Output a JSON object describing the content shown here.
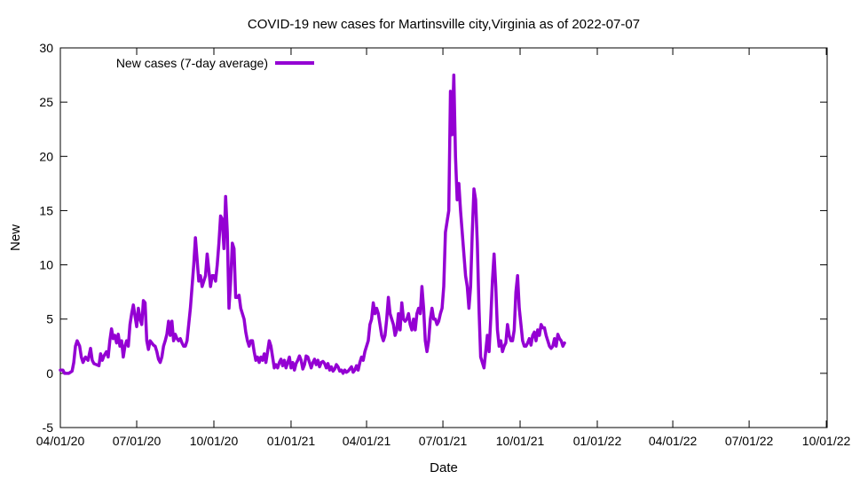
{
  "chart_data": {
    "type": "line",
    "title": "COVID-19 new cases for Martinsville city,Virginia as of 2022-07-07",
    "xlabel": "Date",
    "ylabel": "New",
    "ylim": [
      -5,
      30
    ],
    "yticks": [
      -5,
      0,
      5,
      10,
      15,
      20,
      25,
      30
    ],
    "x_range_days": [
      0,
      914
    ],
    "xticks": [
      {
        "label": "04/01/20",
        "day": 0
      },
      {
        "label": "07/01/20",
        "day": 91
      },
      {
        "label": "10/01/20",
        "day": 183
      },
      {
        "label": "01/01/21",
        "day": 275
      },
      {
        "label": "04/01/21",
        "day": 365
      },
      {
        "label": "07/01/21",
        "day": 456
      },
      {
        "label": "10/01/21",
        "day": 548
      },
      {
        "label": "01/01/22",
        "day": 640
      },
      {
        "label": "04/01/22",
        "day": 730
      },
      {
        "label": "07/01/22",
        "day": 821
      },
      {
        "label": "10/01/22",
        "day": 913
      }
    ],
    "legend": {
      "position": "top-left",
      "label": "New cases (7-day average)"
    },
    "series": [
      {
        "name": "New cases (7-day average)",
        "color": "#9400d3",
        "points": [
          [
            0,
            0.3
          ],
          [
            3,
            0.3
          ],
          [
            5,
            0
          ],
          [
            10,
            0
          ],
          [
            14,
            0.2
          ],
          [
            16,
            1.0
          ],
          [
            18,
            2.5
          ],
          [
            20,
            3.0
          ],
          [
            23,
            2.5
          ],
          [
            25,
            1.5
          ],
          [
            27,
            1.0
          ],
          [
            30,
            1.5
          ],
          [
            33,
            1.2
          ],
          [
            36,
            2.3
          ],
          [
            38,
            1.2
          ],
          [
            40,
            0.9
          ],
          [
            43,
            0.8
          ],
          [
            46,
            0.7
          ],
          [
            48,
            1.8
          ],
          [
            50,
            1.2
          ],
          [
            52,
            1.6
          ],
          [
            55,
            2.0
          ],
          [
            57,
            1.5
          ],
          [
            59,
            3.0
          ],
          [
            61,
            4.1
          ],
          [
            63,
            3.2
          ],
          [
            65,
            3.5
          ],
          [
            67,
            2.8
          ],
          [
            69,
            3.6
          ],
          [
            71,
            2.5
          ],
          [
            73,
            3.0
          ],
          [
            75,
            1.5
          ],
          [
            77,
            2.5
          ],
          [
            79,
            3.0
          ],
          [
            81,
            2.5
          ],
          [
            83,
            4.5
          ],
          [
            85,
            5.5
          ],
          [
            87,
            6.3
          ],
          [
            89,
            5.3
          ],
          [
            91,
            4.3
          ],
          [
            93,
            6.0
          ],
          [
            95,
            5.0
          ],
          [
            97,
            4.5
          ],
          [
            99,
            6.7
          ],
          [
            101,
            6.5
          ],
          [
            103,
            3.0
          ],
          [
            105,
            2.2
          ],
          [
            107,
            3.0
          ],
          [
            109,
            2.8
          ],
          [
            111,
            2.6
          ],
          [
            113,
            2.5
          ],
          [
            115,
            2.0
          ],
          [
            117,
            1.3
          ],
          [
            119,
            1.0
          ],
          [
            121,
            1.5
          ],
          [
            123,
            2.5
          ],
          [
            125,
            3.0
          ],
          [
            127,
            3.6
          ],
          [
            129,
            4.8
          ],
          [
            131,
            3.5
          ],
          [
            133,
            4.8
          ],
          [
            135,
            3.0
          ],
          [
            137,
            3.6
          ],
          [
            139,
            3.2
          ],
          [
            141,
            3.0
          ],
          [
            143,
            3.2
          ],
          [
            145,
            2.8
          ],
          [
            147,
            2.5
          ],
          [
            149,
            2.5
          ],
          [
            151,
            3.0
          ],
          [
            153,
            4.5
          ],
          [
            155,
            6.0
          ],
          [
            157,
            8.0
          ],
          [
            159,
            10.0
          ],
          [
            161,
            12.5
          ],
          [
            163,
            10.5
          ],
          [
            165,
            8.5
          ],
          [
            167,
            9.0
          ],
          [
            169,
            8.0
          ],
          [
            171,
            8.5
          ],
          [
            173,
            9.0
          ],
          [
            175,
            11.0
          ],
          [
            177,
            9.5
          ],
          [
            179,
            8.0
          ],
          [
            181,
            9.0
          ],
          [
            183,
            9.0
          ],
          [
            185,
            8.5
          ],
          [
            187,
            10.0
          ],
          [
            189,
            12.0
          ],
          [
            191,
            14.5
          ],
          [
            193,
            14.2
          ],
          [
            195,
            11.5
          ],
          [
            197,
            16.3
          ],
          [
            199,
            13.0
          ],
          [
            201,
            6.0
          ],
          [
            203,
            8.5
          ],
          [
            205,
            12.0
          ],
          [
            207,
            11.5
          ],
          [
            209,
            7.0
          ],
          [
            211,
            7.0
          ],
          [
            213,
            7.2
          ],
          [
            215,
            6.0
          ],
          [
            217,
            5.5
          ],
          [
            219,
            5.0
          ],
          [
            221,
            3.8
          ],
          [
            223,
            3.0
          ],
          [
            225,
            2.5
          ],
          [
            227,
            3.0
          ],
          [
            229,
            3.0
          ],
          [
            231,
            2.0
          ],
          [
            233,
            1.2
          ],
          [
            235,
            1.5
          ],
          [
            237,
            1.0
          ],
          [
            239,
            1.5
          ],
          [
            241,
            1.2
          ],
          [
            243,
            1.8
          ],
          [
            245,
            1.0
          ],
          [
            247,
            2.0
          ],
          [
            249,
            3.0
          ],
          [
            251,
            2.5
          ],
          [
            253,
            1.5
          ],
          [
            255,
            0.5
          ],
          [
            257,
            0.8
          ],
          [
            259,
            0.5
          ],
          [
            261,
            1.0
          ],
          [
            263,
            1.3
          ],
          [
            265,
            0.7
          ],
          [
            267,
            1.2
          ],
          [
            269,
            0.5
          ],
          [
            271,
            1.0
          ],
          [
            273,
            1.5
          ],
          [
            275,
            0.5
          ],
          [
            277,
            1.0
          ],
          [
            279,
            0.3
          ],
          [
            281,
            0.9
          ],
          [
            283,
            1.2
          ],
          [
            285,
            1.6
          ],
          [
            287,
            1.2
          ],
          [
            289,
            0.4
          ],
          [
            291,
            0.8
          ],
          [
            293,
            1.6
          ],
          [
            295,
            1.5
          ],
          [
            297,
            1.0
          ],
          [
            299,
            0.5
          ],
          [
            301,
            1.0
          ],
          [
            303,
            1.3
          ],
          [
            305,
            0.8
          ],
          [
            307,
            1.2
          ],
          [
            309,
            0.6
          ],
          [
            311,
            1.0
          ],
          [
            313,
            1.1
          ],
          [
            315,
            0.9
          ],
          [
            317,
            0.5
          ],
          [
            319,
            0.9
          ],
          [
            321,
            0.3
          ],
          [
            323,
            0.6
          ],
          [
            325,
            0.2
          ],
          [
            327,
            0.4
          ],
          [
            329,
            0.8
          ],
          [
            331,
            0.6
          ],
          [
            333,
            0.2
          ],
          [
            335,
            0.3
          ],
          [
            337,
            0.0
          ],
          [
            339,
            0.3
          ],
          [
            341,
            0.1
          ],
          [
            343,
            0.2
          ],
          [
            345,
            0.4
          ],
          [
            347,
            0.6
          ],
          [
            349,
            0.1
          ],
          [
            351,
            0.3
          ],
          [
            353,
            0.7
          ],
          [
            355,
            0.3
          ],
          [
            357,
            1.0
          ],
          [
            359,
            1.5
          ],
          [
            361,
            1.2
          ],
          [
            363,
            2.0
          ],
          [
            365,
            2.5
          ],
          [
            367,
            3.0
          ],
          [
            369,
            4.5
          ],
          [
            371,
            5.0
          ],
          [
            373,
            6.5
          ],
          [
            375,
            5.5
          ],
          [
            377,
            6.0
          ],
          [
            379,
            5.5
          ],
          [
            381,
            4.5
          ],
          [
            383,
            3.5
          ],
          [
            385,
            3.0
          ],
          [
            387,
            3.5
          ],
          [
            389,
            5.0
          ],
          [
            391,
            7.0
          ],
          [
            393,
            5.5
          ],
          [
            395,
            5.0
          ],
          [
            397,
            4.5
          ],
          [
            399,
            3.5
          ],
          [
            401,
            4.0
          ],
          [
            403,
            5.5
          ],
          [
            405,
            4.0
          ],
          [
            407,
            6.5
          ],
          [
            409,
            5.0
          ],
          [
            411,
            4.8
          ],
          [
            413,
            5.0
          ],
          [
            415,
            5.5
          ],
          [
            417,
            4.5
          ],
          [
            419,
            4.0
          ],
          [
            421,
            5.0
          ],
          [
            423,
            4.0
          ],
          [
            425,
            5.5
          ],
          [
            427,
            6.0
          ],
          [
            429,
            5.5
          ],
          [
            431,
            8.0
          ],
          [
            433,
            6.0
          ],
          [
            435,
            3.0
          ],
          [
            437,
            2.0
          ],
          [
            439,
            3.0
          ],
          [
            441,
            5.0
          ],
          [
            443,
            6.0
          ],
          [
            445,
            5.0
          ],
          [
            447,
            5.0
          ],
          [
            449,
            4.5
          ],
          [
            451,
            4.8
          ],
          [
            453,
            5.5
          ],
          [
            455,
            6.0
          ],
          [
            457,
            8.0
          ],
          [
            459,
            13.0
          ],
          [
            461,
            14.0
          ],
          [
            463,
            15.0
          ],
          [
            465,
            26.0
          ],
          [
            467,
            22.0
          ],
          [
            469,
            27.5
          ],
          [
            471,
            20.0
          ],
          [
            473,
            16.0
          ],
          [
            475,
            17.5
          ],
          [
            477,
            15.0
          ],
          [
            479,
            13.0
          ],
          [
            481,
            11.0
          ],
          [
            483,
            9.0
          ],
          [
            485,
            8.0
          ],
          [
            487,
            6.0
          ],
          [
            489,
            8.0
          ],
          [
            491,
            13.0
          ],
          [
            493,
            17.0
          ],
          [
            495,
            16.0
          ],
          [
            497,
            12.0
          ],
          [
            499,
            6.0
          ],
          [
            501,
            1.5
          ],
          [
            503,
            1.0
          ],
          [
            505,
            0.5
          ],
          [
            507,
            2.0
          ],
          [
            509,
            3.5
          ],
          [
            511,
            2.0
          ],
          [
            513,
            5.0
          ],
          [
            515,
            8.5
          ],
          [
            517,
            11.0
          ],
          [
            519,
            8.0
          ],
          [
            521,
            4.0
          ],
          [
            523,
            2.5
          ],
          [
            525,
            3.0
          ],
          [
            527,
            2.0
          ],
          [
            529,
            2.5
          ],
          [
            531,
            2.8
          ],
          [
            533,
            4.5
          ],
          [
            535,
            3.5
          ],
          [
            537,
            3.0
          ],
          [
            539,
            3.0
          ],
          [
            541,
            4.0
          ],
          [
            543,
            7.5
          ],
          [
            545,
            9.0
          ],
          [
            547,
            6.0
          ],
          [
            549,
            4.5
          ],
          [
            551,
            3.0
          ],
          [
            553,
            2.5
          ],
          [
            555,
            2.5
          ],
          [
            557,
            2.8
          ],
          [
            559,
            3.2
          ],
          [
            561,
            2.6
          ],
          [
            563,
            3.5
          ],
          [
            565,
            3.8
          ],
          [
            567,
            3.0
          ],
          [
            569,
            4.0
          ],
          [
            571,
            3.5
          ],
          [
            573,
            4.5
          ],
          [
            575,
            4.2
          ],
          [
            577,
            4.2
          ],
          [
            579,
            3.5
          ],
          [
            581,
            3.0
          ],
          [
            583,
            2.5
          ],
          [
            585,
            2.3
          ],
          [
            587,
            2.5
          ],
          [
            589,
            3.2
          ],
          [
            591,
            2.5
          ],
          [
            593,
            3.6
          ],
          [
            595,
            3.2
          ],
          [
            597,
            3.0
          ],
          [
            599,
            2.5
          ],
          [
            601,
            2.8
          ]
        ]
      }
    ]
  }
}
